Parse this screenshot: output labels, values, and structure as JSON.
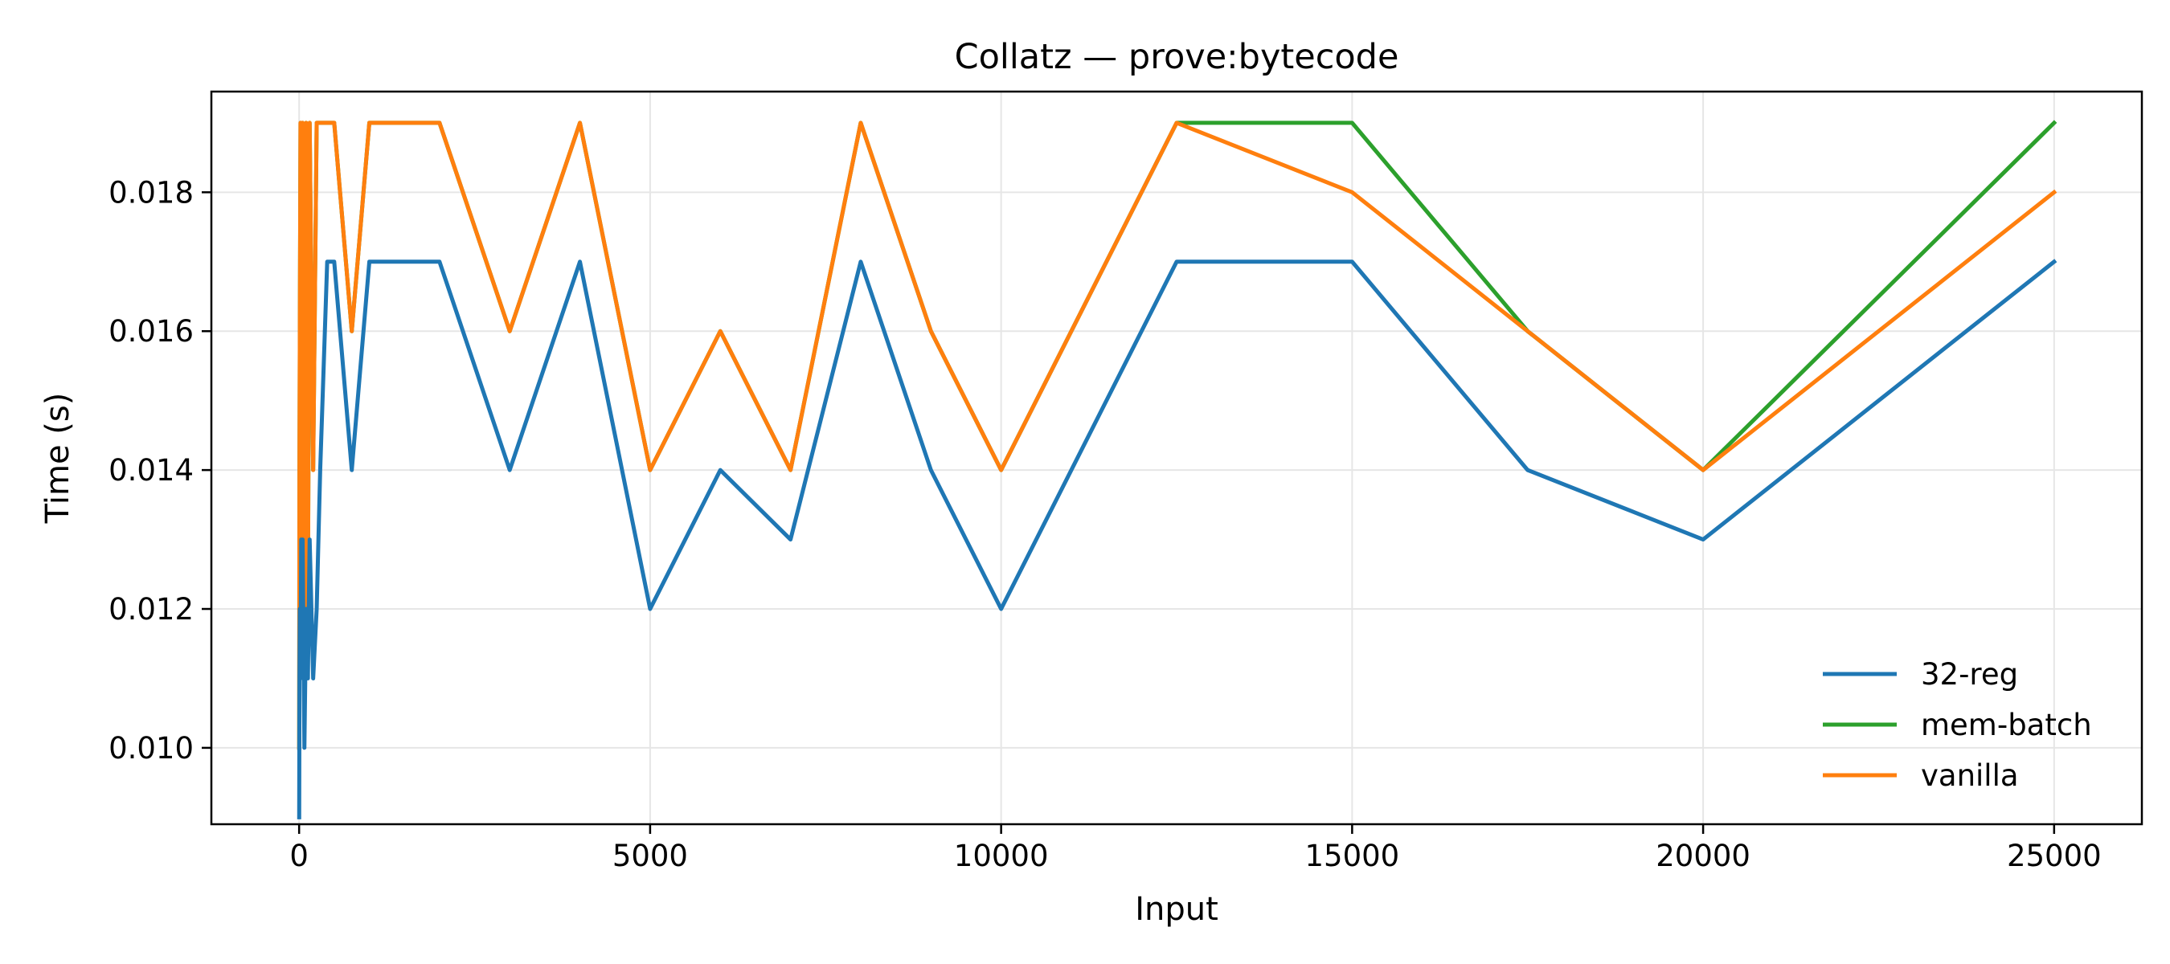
{
  "chart_data": {
    "type": "line",
    "title": "Collatz — prove:bytecode",
    "xlabel": "Input",
    "ylabel": "Time (s)",
    "xlim": [
      -1250,
      26250
    ],
    "ylim": [
      0.0089,
      0.01945
    ],
    "xticks": [
      0,
      5000,
      10000,
      15000,
      20000,
      25000
    ],
    "yticks": [
      0.01,
      0.012,
      0.014,
      0.016,
      0.018
    ],
    "xtick_labels": [
      "0",
      "5000",
      "10000",
      "15000",
      "20000",
      "25000"
    ],
    "ytick_labels": [
      "0.010",
      "0.012",
      "0.014",
      "0.016",
      "0.018"
    ],
    "grid": true,
    "legend_position": "lower-right",
    "series": [
      {
        "name": "32-reg",
        "color": "#1f77b4",
        "points": [
          [
            1,
            0.009
          ],
          [
            5,
            0.011
          ],
          [
            10,
            0.012
          ],
          [
            20,
            0.011
          ],
          [
            30,
            0.013
          ],
          [
            50,
            0.013
          ],
          [
            75,
            0.01
          ],
          [
            100,
            0.012
          ],
          [
            125,
            0.011
          ],
          [
            150,
            0.013
          ],
          [
            200,
            0.011
          ],
          [
            250,
            0.012
          ],
          [
            300,
            0.014
          ],
          [
            400,
            0.017
          ],
          [
            500,
            0.017
          ],
          [
            750,
            0.014
          ],
          [
            1000,
            0.017
          ],
          [
            2000,
            0.017
          ],
          [
            3000,
            0.014
          ],
          [
            4000,
            0.017
          ],
          [
            5000,
            0.012
          ],
          [
            6000,
            0.014
          ],
          [
            7000,
            0.013
          ],
          [
            8000,
            0.017
          ],
          [
            9000,
            0.014
          ],
          [
            10000,
            0.012
          ],
          [
            12500,
            0.017
          ],
          [
            15000,
            0.017
          ],
          [
            17500,
            0.014
          ],
          [
            20000,
            0.013
          ],
          [
            25000,
            0.017
          ]
        ]
      },
      {
        "name": "mem-batch",
        "color": "#2ca02c",
        "points": [
          [
            1,
            0.01
          ],
          [
            5,
            0.014
          ],
          [
            10,
            0.016
          ],
          [
            20,
            0.019
          ],
          [
            30,
            0.012
          ],
          [
            50,
            0.019
          ],
          [
            75,
            0.011
          ],
          [
            100,
            0.019
          ],
          [
            125,
            0.012
          ],
          [
            150,
            0.019
          ],
          [
            200,
            0.014
          ],
          [
            250,
            0.019
          ],
          [
            300,
            0.019
          ],
          [
            400,
            0.019
          ],
          [
            500,
            0.019
          ],
          [
            750,
            0.016
          ],
          [
            1000,
            0.019
          ],
          [
            2000,
            0.019
          ],
          [
            3000,
            0.016
          ],
          [
            4000,
            0.019
          ],
          [
            5000,
            0.014
          ],
          [
            6000,
            0.016
          ],
          [
            7000,
            0.014
          ],
          [
            8000,
            0.019
          ],
          [
            9000,
            0.016
          ],
          [
            10000,
            0.014
          ],
          [
            12500,
            0.019
          ],
          [
            15000,
            0.019
          ],
          [
            17500,
            0.016
          ],
          [
            20000,
            0.014
          ],
          [
            25000,
            0.019
          ]
        ]
      },
      {
        "name": "vanilla",
        "color": "#ff7f0e",
        "points": [
          [
            1,
            0.01
          ],
          [
            5,
            0.014
          ],
          [
            10,
            0.016
          ],
          [
            20,
            0.019
          ],
          [
            30,
            0.012
          ],
          [
            50,
            0.019
          ],
          [
            75,
            0.011
          ],
          [
            100,
            0.019
          ],
          [
            125,
            0.012
          ],
          [
            150,
            0.019
          ],
          [
            200,
            0.014
          ],
          [
            250,
            0.019
          ],
          [
            300,
            0.019
          ],
          [
            400,
            0.019
          ],
          [
            500,
            0.019
          ],
          [
            750,
            0.016
          ],
          [
            1000,
            0.019
          ],
          [
            2000,
            0.019
          ],
          [
            3000,
            0.016
          ],
          [
            4000,
            0.019
          ],
          [
            5000,
            0.014
          ],
          [
            6000,
            0.016
          ],
          [
            7000,
            0.014
          ],
          [
            8000,
            0.019
          ],
          [
            9000,
            0.016
          ],
          [
            10000,
            0.014
          ],
          [
            12500,
            0.019
          ],
          [
            15000,
            0.018
          ],
          [
            17500,
            0.016
          ],
          [
            20000,
            0.014
          ],
          [
            25000,
            0.018
          ]
        ]
      }
    ]
  }
}
